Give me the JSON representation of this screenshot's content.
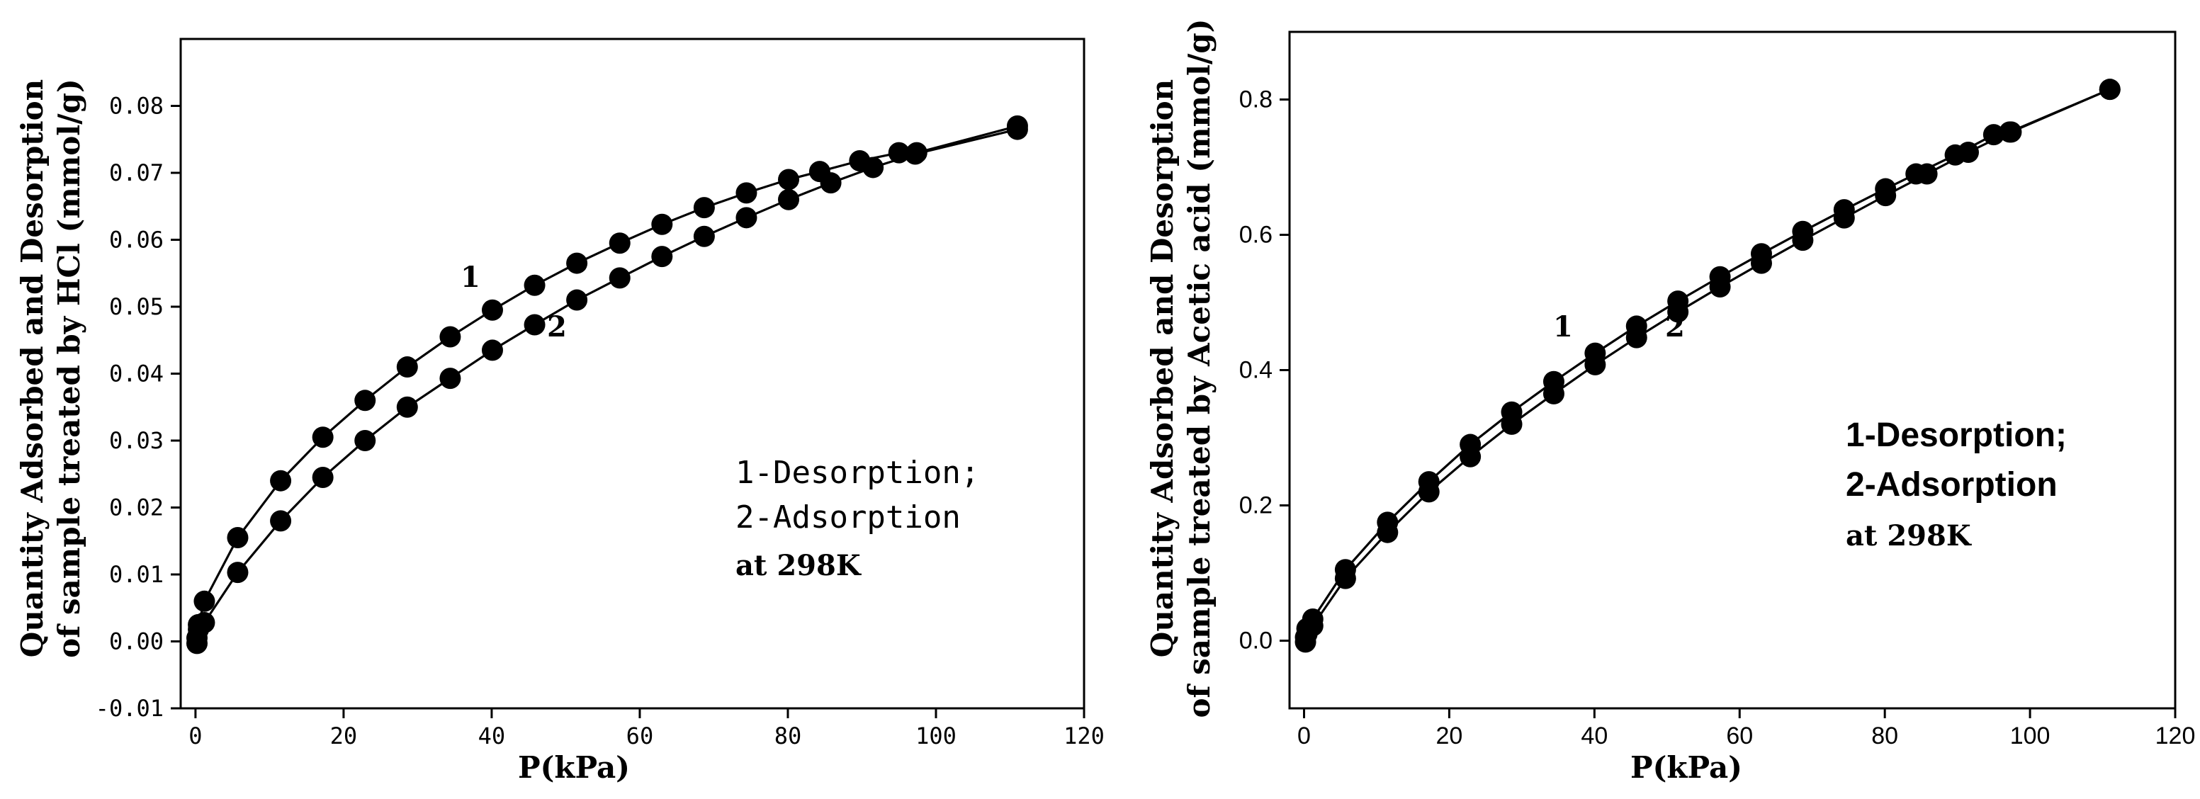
{
  "chart_data": [
    {
      "type": "scatter",
      "xlabel": "P(kPa)",
      "ylabel_line1": "Quantity Adsorbed and Desorption",
      "ylabel_line2": "of sample treated by HCl (mmol/g)",
      "xlim": [
        -2,
        120
      ],
      "ylim": [
        -0.01,
        0.09
      ],
      "xticks": [
        0,
        20,
        40,
        60,
        80,
        100,
        120
      ],
      "xtick_labels": [
        "0",
        "20",
        "40",
        "60",
        "80",
        "100",
        "120"
      ],
      "yticks": [
        -0.01,
        0.0,
        0.01,
        0.02,
        0.03,
        0.04,
        0.05,
        0.06,
        0.07,
        0.08
      ],
      "ytick_labels": [
        "-0.01",
        "0.00",
        "0.01",
        "0.02",
        "0.03",
        "0.04",
        "0.05",
        "0.06",
        "0.07",
        "0.08"
      ],
      "series": [
        {
          "name": "1-Desorption",
          "label": "1",
          "x": [
            0.2,
            0.4,
            1.2,
            5.7,
            11.5,
            17.2,
            22.9,
            28.6,
            34.4,
            40.1,
            45.8,
            51.5,
            57.3,
            63.0,
            68.7,
            74.4,
            80.1,
            84.3,
            89.7,
            95.0,
            97.4,
            111.0
          ],
          "y": [
            0.0005,
            0.0025,
            0.006,
            0.0155,
            0.024,
            0.0305,
            0.036,
            0.041,
            0.0455,
            0.0495,
            0.0532,
            0.0565,
            0.0595,
            0.0623,
            0.0648,
            0.067,
            0.069,
            0.0702,
            0.0718,
            0.073,
            0.073,
            0.077
          ]
        },
        {
          "name": "2-Adsorption",
          "label": "2",
          "x": [
            0.2,
            0.4,
            1.2,
            5.7,
            11.5,
            17.2,
            22.9,
            28.6,
            34.4,
            40.1,
            45.8,
            51.5,
            57.3,
            63.0,
            68.7,
            74.4,
            80.1,
            85.8,
            91.5,
            97.2,
            111.0
          ],
          "y": [
            -0.0003,
            0.0018,
            0.0028,
            0.0103,
            0.018,
            0.0245,
            0.03,
            0.035,
            0.0393,
            0.0435,
            0.0473,
            0.051,
            0.0543,
            0.0575,
            0.0605,
            0.0633,
            0.066,
            0.0685,
            0.0708,
            0.0728,
            0.0765
          ]
        }
      ],
      "annotation_lines": [
        "1-Desorption;",
        "2-Adsorption",
        "at 298K"
      ]
    },
    {
      "type": "scatter",
      "xlabel": "P(kPa)",
      "ylabel_line1": "Quantity Adsorbed and Desorption",
      "ylabel_line2": "of sample treated by Acetic acid (mmol/g)",
      "xlim": [
        -2,
        120
      ],
      "ylim": [
        -0.1,
        0.9
      ],
      "xticks": [
        0,
        20,
        40,
        60,
        80,
        100,
        120
      ],
      "xtick_labels": [
        "0",
        "20",
        "40",
        "60",
        "80",
        "100",
        "120"
      ],
      "yticks": [
        0.0,
        0.2,
        0.4,
        0.6,
        0.8
      ],
      "ytick_labels": [
        "0.0",
        "0.2",
        "0.4",
        "0.6",
        "0.8"
      ],
      "series": [
        {
          "name": "1-Desorption",
          "label": "1",
          "x": [
            0.2,
            0.4,
            1.2,
            5.7,
            11.5,
            17.2,
            22.9,
            28.6,
            34.4,
            40.1,
            45.8,
            51.5,
            57.3,
            63.0,
            68.7,
            74.4,
            80.1,
            84.3,
            89.7,
            95.0,
            97.4,
            111.0
          ],
          "y": [
            0.005,
            0.018,
            0.032,
            0.105,
            0.175,
            0.235,
            0.29,
            0.338,
            0.383,
            0.425,
            0.465,
            0.502,
            0.538,
            0.572,
            0.605,
            0.637,
            0.668,
            0.69,
            0.718,
            0.748,
            0.752,
            0.815
          ]
        },
        {
          "name": "2-Adsorption",
          "label": "2",
          "x": [
            0.2,
            0.4,
            1.2,
            5.7,
            11.5,
            17.2,
            22.9,
            28.6,
            34.4,
            40.1,
            45.8,
            51.5,
            57.3,
            63.0,
            68.7,
            74.4,
            80.1,
            85.8,
            91.5,
            97.2,
            111.0
          ],
          "y": [
            -0.002,
            0.01,
            0.022,
            0.092,
            0.16,
            0.22,
            0.272,
            0.32,
            0.365,
            0.408,
            0.448,
            0.486,
            0.523,
            0.558,
            0.592,
            0.625,
            0.658,
            0.69,
            0.722,
            0.752,
            0.815
          ]
        }
      ],
      "annotation_lines": [
        "1-Desorption;",
        "2-Adsorption",
        "at 298K"
      ]
    }
  ]
}
